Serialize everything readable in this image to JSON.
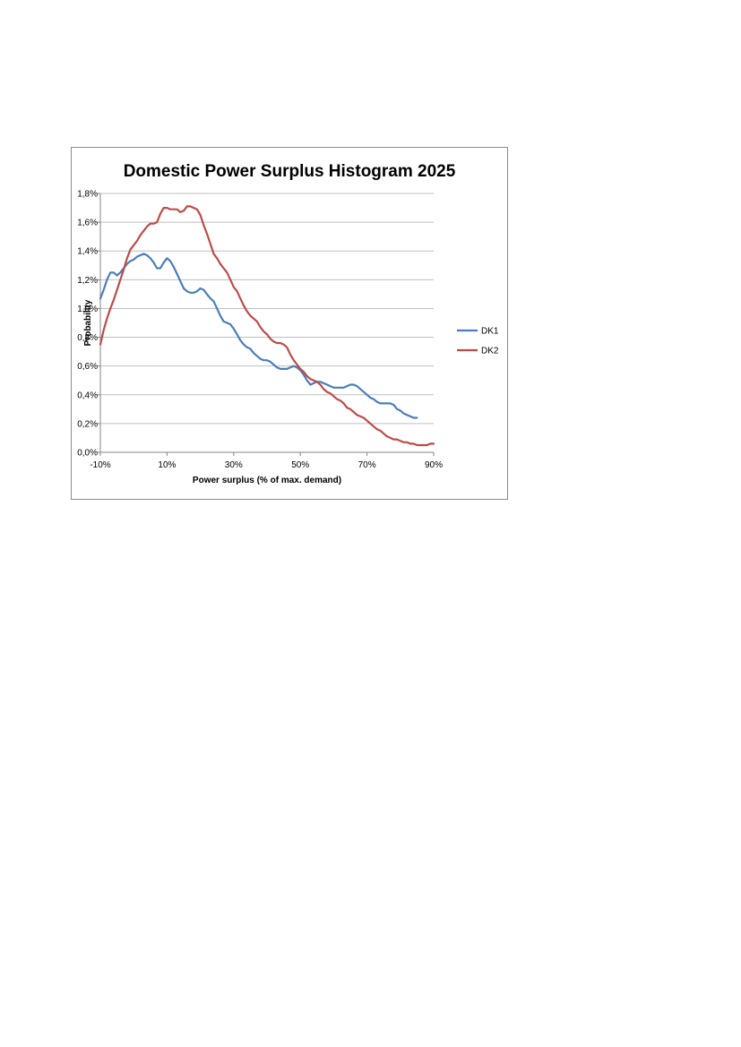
{
  "chart_data": {
    "type": "line",
    "title": "Domestic Power Surplus Histogram 2025",
    "xlabel": "Power surplus (% of max. demand)",
    "ylabel": "Probability",
    "xlim": [
      -10,
      90
    ],
    "ylim": [
      0,
      1.8
    ],
    "x_ticks": [
      -10,
      10,
      30,
      50,
      70,
      90
    ],
    "x_tick_labels": [
      "-10%",
      "10%",
      "30%",
      "50%",
      "70%",
      "90%"
    ],
    "y_ticks": [
      0,
      0.2,
      0.4,
      0.6,
      0.8,
      1.0,
      1.2,
      1.4,
      1.6,
      1.8
    ],
    "y_tick_labels": [
      "0,0%",
      "0,2%",
      "0,4%",
      "0,6%",
      "0,8%",
      "1,0%",
      "1,2%",
      "1,4%",
      "1,6%",
      "1,8%"
    ],
    "grid": true,
    "legend_position": "right",
    "series": [
      {
        "name": "DK1",
        "color": "#4a7ebb",
        "points": [
          [
            -10,
            1.07
          ],
          [
            -9,
            1.13
          ],
          [
            -8,
            1.2
          ],
          [
            -7,
            1.25
          ],
          [
            -6,
            1.25
          ],
          [
            -5,
            1.23
          ],
          [
            -4,
            1.25
          ],
          [
            -3,
            1.28
          ],
          [
            -2,
            1.31
          ],
          [
            -1,
            1.33
          ],
          [
            0,
            1.34
          ],
          [
            1,
            1.36
          ],
          [
            2,
            1.37
          ],
          [
            3,
            1.38
          ],
          [
            4,
            1.37
          ],
          [
            5,
            1.35
          ],
          [
            6,
            1.32
          ],
          [
            7,
            1.28
          ],
          [
            8,
            1.28
          ],
          [
            9,
            1.32
          ],
          [
            10,
            1.35
          ],
          [
            11,
            1.33
          ],
          [
            12,
            1.29
          ],
          [
            13,
            1.24
          ],
          [
            14,
            1.19
          ],
          [
            15,
            1.14
          ],
          [
            16,
            1.12
          ],
          [
            17,
            1.11
          ],
          [
            18,
            1.11
          ],
          [
            19,
            1.12
          ],
          [
            20,
            1.14
          ],
          [
            21,
            1.13
          ],
          [
            22,
            1.1
          ],
          [
            23,
            1.07
          ],
          [
            24,
            1.05
          ],
          [
            25,
            1.0
          ],
          [
            26,
            0.95
          ],
          [
            27,
            0.91
          ],
          [
            28,
            0.9
          ],
          [
            29,
            0.89
          ],
          [
            30,
            0.86
          ],
          [
            31,
            0.82
          ],
          [
            32,
            0.78
          ],
          [
            33,
            0.75
          ],
          [
            34,
            0.73
          ],
          [
            35,
            0.72
          ],
          [
            36,
            0.69
          ],
          [
            37,
            0.67
          ],
          [
            38,
            0.65
          ],
          [
            39,
            0.64
          ],
          [
            40,
            0.64
          ],
          [
            41,
            0.63
          ],
          [
            42,
            0.61
          ],
          [
            43,
            0.59
          ],
          [
            44,
            0.58
          ],
          [
            45,
            0.58
          ],
          [
            46,
            0.58
          ],
          [
            47,
            0.59
          ],
          [
            48,
            0.6
          ],
          [
            49,
            0.59
          ],
          [
            50,
            0.57
          ],
          [
            51,
            0.54
          ],
          [
            52,
            0.5
          ],
          [
            53,
            0.47
          ],
          [
            54,
            0.48
          ],
          [
            55,
            0.49
          ],
          [
            56,
            0.49
          ],
          [
            57,
            0.48
          ],
          [
            58,
            0.47
          ],
          [
            59,
            0.46
          ],
          [
            60,
            0.45
          ],
          [
            61,
            0.45
          ],
          [
            62,
            0.45
          ],
          [
            63,
            0.45
          ],
          [
            64,
            0.46
          ],
          [
            65,
            0.47
          ],
          [
            66,
            0.47
          ],
          [
            67,
            0.46
          ],
          [
            68,
            0.44
          ],
          [
            69,
            0.42
          ],
          [
            70,
            0.4
          ],
          [
            71,
            0.38
          ],
          [
            72,
            0.37
          ],
          [
            73,
            0.35
          ],
          [
            74,
            0.34
          ],
          [
            75,
            0.34
          ],
          [
            76,
            0.34
          ],
          [
            77,
            0.34
          ],
          [
            78,
            0.33
          ],
          [
            79,
            0.3
          ],
          [
            80,
            0.29
          ],
          [
            81,
            0.27
          ],
          [
            82,
            0.26
          ],
          [
            83,
            0.25
          ],
          [
            84,
            0.24
          ],
          [
            85,
            0.24
          ]
        ]
      },
      {
        "name": "DK2",
        "color": "#be4b48",
        "points": [
          [
            -10,
            0.75
          ],
          [
            -9,
            0.85
          ],
          [
            -8,
            0.93
          ],
          [
            -7,
            1.0
          ],
          [
            -6,
            1.06
          ],
          [
            -5,
            1.13
          ],
          [
            -4,
            1.2
          ],
          [
            -3,
            1.27
          ],
          [
            -2,
            1.35
          ],
          [
            -1,
            1.41
          ],
          [
            0,
            1.44
          ],
          [
            1,
            1.47
          ],
          [
            2,
            1.51
          ],
          [
            3,
            1.54
          ],
          [
            4,
            1.57
          ],
          [
            5,
            1.59
          ],
          [
            6,
            1.59
          ],
          [
            7,
            1.6
          ],
          [
            8,
            1.66
          ],
          [
            9,
            1.7
          ],
          [
            10,
            1.7
          ],
          [
            11,
            1.69
          ],
          [
            12,
            1.69
          ],
          [
            13,
            1.69
          ],
          [
            14,
            1.67
          ],
          [
            15,
            1.68
          ],
          [
            16,
            1.71
          ],
          [
            17,
            1.71
          ],
          [
            18,
            1.7
          ],
          [
            19,
            1.69
          ],
          [
            20,
            1.65
          ],
          [
            21,
            1.58
          ],
          [
            22,
            1.52
          ],
          [
            23,
            1.45
          ],
          [
            24,
            1.38
          ],
          [
            25,
            1.35
          ],
          [
            26,
            1.31
          ],
          [
            27,
            1.28
          ],
          [
            28,
            1.25
          ],
          [
            29,
            1.2
          ],
          [
            30,
            1.15
          ],
          [
            31,
            1.12
          ],
          [
            32,
            1.07
          ],
          [
            33,
            1.02
          ],
          [
            34,
            0.98
          ],
          [
            35,
            0.95
          ],
          [
            36,
            0.93
          ],
          [
            37,
            0.91
          ],
          [
            38,
            0.87
          ],
          [
            39,
            0.84
          ],
          [
            40,
            0.82
          ],
          [
            41,
            0.79
          ],
          [
            42,
            0.77
          ],
          [
            43,
            0.76
          ],
          [
            44,
            0.76
          ],
          [
            45,
            0.75
          ],
          [
            46,
            0.73
          ],
          [
            47,
            0.68
          ],
          [
            48,
            0.64
          ],
          [
            49,
            0.61
          ],
          [
            50,
            0.58
          ],
          [
            51,
            0.56
          ],
          [
            52,
            0.53
          ],
          [
            53,
            0.51
          ],
          [
            54,
            0.5
          ],
          [
            55,
            0.49
          ],
          [
            56,
            0.47
          ],
          [
            57,
            0.44
          ],
          [
            58,
            0.42
          ],
          [
            59,
            0.41
          ],
          [
            60,
            0.39
          ],
          [
            61,
            0.37
          ],
          [
            62,
            0.36
          ],
          [
            63,
            0.34
          ],
          [
            64,
            0.31
          ],
          [
            65,
            0.3
          ],
          [
            66,
            0.28
          ],
          [
            67,
            0.26
          ],
          [
            68,
            0.25
          ],
          [
            69,
            0.24
          ],
          [
            70,
            0.22
          ],
          [
            71,
            0.2
          ],
          [
            72,
            0.18
          ],
          [
            73,
            0.16
          ],
          [
            74,
            0.15
          ],
          [
            75,
            0.13
          ],
          [
            76,
            0.11
          ],
          [
            77,
            0.1
          ],
          [
            78,
            0.09
          ],
          [
            79,
            0.09
          ],
          [
            80,
            0.08
          ],
          [
            81,
            0.07
          ],
          [
            82,
            0.07
          ],
          [
            83,
            0.06
          ],
          [
            84,
            0.06
          ],
          [
            85,
            0.05
          ],
          [
            86,
            0.05
          ],
          [
            87,
            0.05
          ],
          [
            88,
            0.05
          ],
          [
            89,
            0.06
          ],
          [
            90,
            0.06
          ]
        ]
      }
    ]
  }
}
